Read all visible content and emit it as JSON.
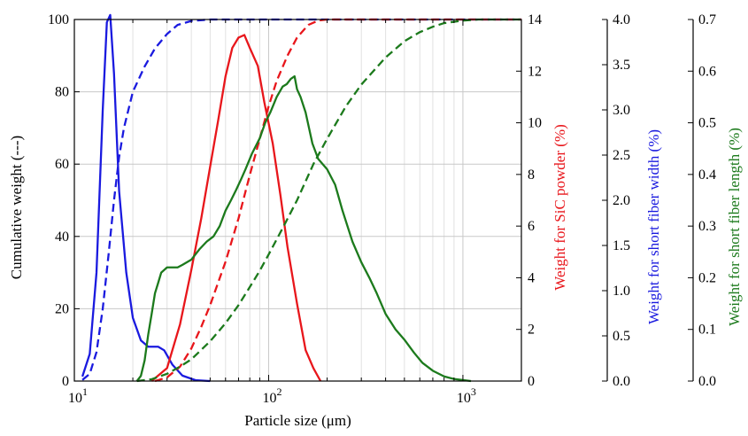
{
  "chart_data": {
    "type": "line",
    "xlabel": "Particle size (μm)",
    "xscale": "log",
    "xlim": [
      10,
      2000
    ],
    "x_ticks": [
      {
        "value": 10,
        "base": "10",
        "exp": "1"
      },
      {
        "value": 100,
        "base": "10",
        "exp": "2"
      },
      {
        "value": 1000,
        "base": "10",
        "exp": "3"
      }
    ],
    "grid": true,
    "axes": {
      "left": {
        "label": "Cumulative weight (---)",
        "ylim": [
          0,
          100
        ],
        "ticks": [
          "0",
          "20",
          "40",
          "60",
          "80",
          "100"
        ],
        "color": "#000000"
      },
      "right1": {
        "label": "Weight for SiC powder (%)",
        "ylim": [
          0,
          14
        ],
        "ticks": [
          "0",
          "2",
          "4",
          "6",
          "8",
          "10",
          "12",
          "14"
        ],
        "color": "#e8161b"
      },
      "right2": {
        "label": "Weight for short fiber width (%)",
        "ylim": [
          0,
          4
        ],
        "ticks": [
          "0.0",
          "0.5",
          "1.0",
          "1.5",
          "2.0",
          "2.5",
          "3.0",
          "3.5",
          "4.0"
        ],
        "color": "#1a1adf"
      },
      "right3": {
        "label": "Weight for short fiber length (%)",
        "ylim": [
          0,
          0.7
        ],
        "ticks": [
          "0.0",
          "0.1",
          "0.2",
          "0.3",
          "0.4",
          "0.5",
          "0.6",
          "0.7"
        ],
        "color": "#1c7a1c"
      }
    },
    "series": [
      {
        "axis": "right2",
        "style": "solid",
        "color": "#1a1adf",
        "points": [
          [
            11,
            0.05
          ],
          [
            12,
            0.3
          ],
          [
            13,
            1.2
          ],
          [
            14,
            3.0
          ],
          [
            14.7,
            3.97
          ],
          [
            15.3,
            4.05
          ],
          [
            16,
            3.4
          ],
          [
            17,
            2.1
          ],
          [
            18.5,
            1.2
          ],
          [
            20,
            0.7
          ],
          [
            22,
            0.45
          ],
          [
            24,
            0.38
          ],
          [
            27,
            0.38
          ],
          [
            29,
            0.34
          ],
          [
            32,
            0.18
          ],
          [
            36,
            0.06
          ],
          [
            42,
            0.01
          ],
          [
            50,
            0
          ]
        ]
      },
      {
        "axis": "left",
        "style": "dashed",
        "color": "#1a1adf",
        "points": [
          [
            11,
            0.3
          ],
          [
            12,
            2
          ],
          [
            13,
            8
          ],
          [
            14,
            20
          ],
          [
            15,
            35
          ],
          [
            16,
            50
          ],
          [
            17,
            62
          ],
          [
            18,
            70
          ],
          [
            20,
            80
          ],
          [
            23,
            87
          ],
          [
            26,
            92
          ],
          [
            30,
            96
          ],
          [
            34,
            98.5
          ],
          [
            40,
            99.6
          ],
          [
            50,
            100
          ],
          [
            2000,
            100
          ]
        ]
      },
      {
        "axis": "right1",
        "style": "solid",
        "color": "#e8161b",
        "points": [
          [
            25,
            0
          ],
          [
            30,
            0.5
          ],
          [
            35,
            2.2
          ],
          [
            40,
            4.3
          ],
          [
            45,
            6.3
          ],
          [
            50,
            8.3
          ],
          [
            55,
            10.1
          ],
          [
            60,
            11.8
          ],
          [
            65,
            12.9
          ],
          [
            70,
            13.3
          ],
          [
            75,
            13.4
          ],
          [
            80,
            12.9
          ],
          [
            88,
            12.2
          ],
          [
            95,
            10.8
          ],
          [
            105,
            9.2
          ],
          [
            115,
            7.2
          ],
          [
            125,
            5.2
          ],
          [
            140,
            3.0
          ],
          [
            155,
            1.2
          ],
          [
            170,
            0.5
          ],
          [
            185,
            0
          ]
        ]
      },
      {
        "axis": "left",
        "style": "dashed",
        "color": "#e8161b",
        "points": [
          [
            26,
            0
          ],
          [
            30,
            1
          ],
          [
            35,
            4
          ],
          [
            40,
            9
          ],
          [
            45,
            15
          ],
          [
            50,
            21
          ],
          [
            60,
            33
          ],
          [
            70,
            45
          ],
          [
            80,
            57
          ],
          [
            90,
            67
          ],
          [
            100,
            76
          ],
          [
            110,
            83
          ],
          [
            125,
            90
          ],
          [
            140,
            95
          ],
          [
            160,
            98.5
          ],
          [
            180,
            99.7
          ],
          [
            200,
            100
          ],
          [
            2000,
            100
          ]
        ]
      },
      {
        "axis": "right3",
        "style": "solid",
        "color": "#1c7a1c",
        "points": [
          [
            21,
            0
          ],
          [
            22,
            0.01
          ],
          [
            23,
            0.04
          ],
          [
            24,
            0.09
          ],
          [
            25,
            0.13
          ],
          [
            26,
            0.17
          ],
          [
            27,
            0.19
          ],
          [
            28,
            0.21
          ],
          [
            30,
            0.22
          ],
          [
            32,
            0.22
          ],
          [
            34,
            0.22
          ],
          [
            36,
            0.225
          ],
          [
            40,
            0.235
          ],
          [
            44,
            0.255
          ],
          [
            48,
            0.27
          ],
          [
            52,
            0.28
          ],
          [
            56,
            0.3
          ],
          [
            60,
            0.33
          ],
          [
            64,
            0.35
          ],
          [
            68,
            0.37
          ],
          [
            72,
            0.39
          ],
          [
            76,
            0.41
          ],
          [
            82,
            0.44
          ],
          [
            90,
            0.47
          ],
          [
            96,
            0.5
          ],
          [
            102,
            0.52
          ],
          [
            110,
            0.55
          ],
          [
            118,
            0.57
          ],
          [
            124,
            0.575
          ],
          [
            130,
            0.585
          ],
          [
            136,
            0.59
          ],
          [
            140,
            0.565
          ],
          [
            146,
            0.55
          ],
          [
            155,
            0.52
          ],
          [
            168,
            0.46
          ],
          [
            180,
            0.43
          ],
          [
            200,
            0.41
          ],
          [
            220,
            0.38
          ],
          [
            240,
            0.33
          ],
          [
            270,
            0.27
          ],
          [
            300,
            0.23
          ],
          [
            330,
            0.2
          ],
          [
            360,
            0.17
          ],
          [
            400,
            0.13
          ],
          [
            450,
            0.1
          ],
          [
            500,
            0.08
          ],
          [
            560,
            0.055
          ],
          [
            620,
            0.035
          ],
          [
            700,
            0.02
          ],
          [
            800,
            0.009
          ],
          [
            900,
            0.004
          ],
          [
            1000,
            0.002
          ],
          [
            1100,
            0
          ]
        ]
      },
      {
        "axis": "left",
        "style": "dashed",
        "color": "#1c7a1c",
        "points": [
          [
            21,
            0
          ],
          [
            25,
            0.5
          ],
          [
            30,
            2
          ],
          [
            35,
            4
          ],
          [
            40,
            6
          ],
          [
            50,
            11
          ],
          [
            60,
            16
          ],
          [
            70,
            21
          ],
          [
            80,
            26
          ],
          [
            90,
            30.5
          ],
          [
            100,
            35
          ],
          [
            120,
            43
          ],
          [
            140,
            50
          ],
          [
            170,
            60
          ],
          [
            200,
            67
          ],
          [
            250,
            76
          ],
          [
            300,
            82
          ],
          [
            400,
            89.5
          ],
          [
            500,
            94
          ],
          [
            600,
            96.5
          ],
          [
            700,
            98
          ],
          [
            800,
            99
          ],
          [
            1000,
            99.7
          ],
          [
            1200,
            100
          ],
          [
            2000,
            100
          ]
        ]
      }
    ]
  }
}
